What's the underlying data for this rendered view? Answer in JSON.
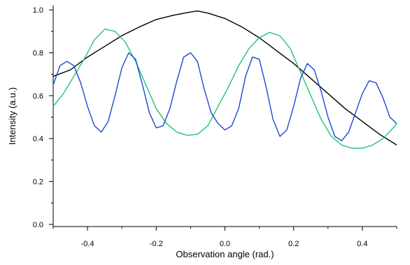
{
  "chart_data": {
    "type": "line",
    "xlabel": "Observation angle (rad.)",
    "ylabel": "Intensity (a.u.)",
    "xlim": [
      -0.5,
      0.5
    ],
    "ylim": [
      -0.01,
      1.02
    ],
    "x_ticks": [
      -0.4,
      -0.2,
      0.0,
      0.2,
      0.4
    ],
    "x_tick_labels": [
      "-0.4",
      "-0.2",
      "0.0",
      "0.2",
      "0.4"
    ],
    "y_ticks": [
      0.0,
      0.2,
      0.4,
      0.6,
      0.8,
      1.0
    ],
    "y_tick_labels": [
      "0.0",
      "0.2",
      "0.4",
      "0.6",
      "0.8",
      "1.0"
    ],
    "grid": false,
    "legend": "none",
    "series": [
      {
        "color": "#000000",
        "x": [
          -0.5,
          -0.45,
          -0.4,
          -0.35,
          -0.3,
          -0.25,
          -0.2,
          -0.15,
          -0.1,
          -0.08,
          -0.05,
          0.0,
          0.05,
          0.1,
          0.15,
          0.2,
          0.25,
          0.3,
          0.35,
          0.4,
          0.45,
          0.5
        ],
        "values": [
          0.69,
          0.72,
          0.78,
          0.83,
          0.88,
          0.92,
          0.955,
          0.975,
          0.99,
          0.995,
          0.985,
          0.96,
          0.92,
          0.87,
          0.81,
          0.75,
          0.68,
          0.61,
          0.54,
          0.48,
          0.42,
          0.37
        ]
      },
      {
        "color": "#22c474",
        "x": [
          -0.5,
          -0.47,
          -0.44,
          -0.41,
          -0.38,
          -0.35,
          -0.32,
          -0.29,
          -0.26,
          -0.23,
          -0.2,
          -0.17,
          -0.14,
          -0.11,
          -0.08,
          -0.05,
          -0.02,
          0.01,
          0.04,
          0.07,
          0.1,
          0.13,
          0.16,
          0.19,
          0.22,
          0.25,
          0.28,
          0.31,
          0.34,
          0.37,
          0.4,
          0.43,
          0.46,
          0.49,
          0.5
        ],
        "values": [
          0.55,
          0.61,
          0.69,
          0.77,
          0.86,
          0.91,
          0.9,
          0.85,
          0.76,
          0.65,
          0.54,
          0.47,
          0.43,
          0.415,
          0.42,
          0.46,
          0.55,
          0.64,
          0.74,
          0.82,
          0.87,
          0.895,
          0.88,
          0.82,
          0.71,
          0.6,
          0.49,
          0.41,
          0.37,
          0.355,
          0.355,
          0.37,
          0.4,
          0.45,
          0.47
        ]
      },
      {
        "color": "#1a48d6",
        "x": [
          -0.5,
          -0.48,
          -0.46,
          -0.44,
          -0.42,
          -0.4,
          -0.38,
          -0.36,
          -0.34,
          -0.32,
          -0.3,
          -0.28,
          -0.26,
          -0.24,
          -0.22,
          -0.2,
          -0.18,
          -0.16,
          -0.14,
          -0.12,
          -0.1,
          -0.08,
          -0.06,
          -0.04,
          -0.02,
          0.0,
          0.02,
          0.04,
          0.06,
          0.08,
          0.1,
          0.12,
          0.14,
          0.16,
          0.18,
          0.2,
          0.22,
          0.24,
          0.26,
          0.28,
          0.3,
          0.32,
          0.34,
          0.36,
          0.38,
          0.4,
          0.42,
          0.44,
          0.46,
          0.48,
          0.5
        ],
        "values": [
          0.65,
          0.74,
          0.76,
          0.74,
          0.66,
          0.55,
          0.46,
          0.43,
          0.48,
          0.6,
          0.73,
          0.8,
          0.77,
          0.65,
          0.52,
          0.45,
          0.46,
          0.54,
          0.67,
          0.78,
          0.8,
          0.76,
          0.63,
          0.52,
          0.47,
          0.44,
          0.46,
          0.54,
          0.69,
          0.78,
          0.77,
          0.64,
          0.49,
          0.41,
          0.44,
          0.55,
          0.68,
          0.75,
          0.72,
          0.62,
          0.5,
          0.41,
          0.39,
          0.43,
          0.52,
          0.61,
          0.67,
          0.66,
          0.59,
          0.5,
          0.47
        ]
      }
    ]
  }
}
